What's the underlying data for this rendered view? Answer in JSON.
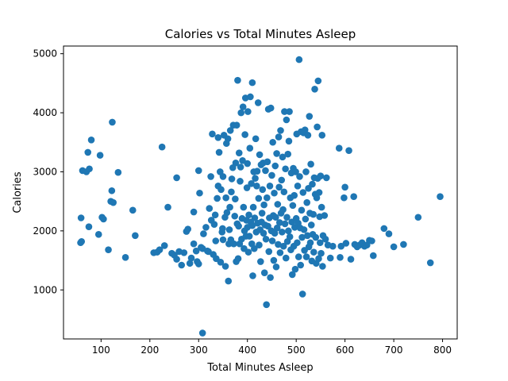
{
  "chart_data": {
    "type": "scatter",
    "title": "Calories vs Total Minutes Asleep",
    "xlabel": "Total Minutes Asleep",
    "ylabel": "Calories",
    "xlim": [
      23,
      830
    ],
    "ylim": [
      170,
      5130
    ],
    "xticks": [
      100,
      200,
      300,
      400,
      500,
      600,
      700,
      800
    ],
    "yticks": [
      1000,
      2000,
      3000,
      4000,
      5000
    ],
    "grid": false,
    "legend": "none",
    "marker_color": "#1f77b4",
    "points": [
      [
        59,
        2220
      ],
      [
        58,
        1800
      ],
      [
        60,
        1820
      ],
      [
        62,
        3020
      ],
      [
        70,
        3000
      ],
      [
        73,
        3330
      ],
      [
        76,
        3050
      ],
      [
        80,
        3540
      ],
      [
        75,
        2070
      ],
      [
        95,
        1940
      ],
      [
        98,
        3280
      ],
      [
        102,
        2230
      ],
      [
        105,
        2200
      ],
      [
        115,
        1680
      ],
      [
        120,
        2500
      ],
      [
        122,
        2680
      ],
      [
        125,
        2480
      ],
      [
        123,
        3840
      ],
      [
        135,
        2990
      ],
      [
        150,
        1550
      ],
      [
        165,
        2350
      ],
      [
        170,
        1920
      ],
      [
        208,
        1630
      ],
      [
        215,
        1640
      ],
      [
        220,
        1680
      ],
      [
        225,
        3420
      ],
      [
        230,
        1750
      ],
      [
        237,
        2400
      ],
      [
        245,
        1620
      ],
      [
        250,
        1590
      ],
      [
        255,
        1520
      ],
      [
        255,
        2900
      ],
      [
        260,
        1650
      ],
      [
        265,
        1420
      ],
      [
        270,
        1630
      ],
      [
        275,
        1990
      ],
      [
        278,
        2030
      ],
      [
        282,
        1450
      ],
      [
        285,
        1540
      ],
      [
        290,
        1780
      ],
      [
        290,
        2320
      ],
      [
        295,
        1660
      ],
      [
        297,
        1480
      ],
      [
        300,
        1440
      ],
      [
        300,
        3020
      ],
      [
        302,
        2640
      ],
      [
        305,
        1720
      ],
      [
        308,
        1700
      ],
      [
        310,
        1950
      ],
      [
        308,
        270
      ],
      [
        315,
        2060
      ],
      [
        318,
        1660
      ],
      [
        320,
        1650
      ],
      [
        322,
        2380
      ],
      [
        325,
        2920
      ],
      [
        326,
        2180
      ],
      [
        328,
        3640
      ],
      [
        330,
        1600
      ],
      [
        332,
        2110
      ],
      [
        334,
        2270
      ],
      [
        335,
        1830
      ],
      [
        336,
        1530
      ],
      [
        338,
        2550
      ],
      [
        340,
        2760
      ],
      [
        340,
        3580
      ],
      [
        342,
        3330
      ],
      [
        344,
        3000
      ],
      [
        345,
        1470
      ],
      [
        346,
        2700
      ],
      [
        348,
        1980
      ],
      [
        349,
        2040
      ],
      [
        350,
        1850
      ],
      [
        350,
        2920
      ],
      [
        352,
        3620
      ],
      [
        354,
        2230
      ],
      [
        355,
        1400
      ],
      [
        356,
        2560
      ],
      [
        357,
        3480
      ],
      [
        358,
        2310
      ],
      [
        360,
        3560
      ],
      [
        361,
        1150
      ],
      [
        362,
        1780
      ],
      [
        363,
        2020
      ],
      [
        364,
        2400
      ],
      [
        365,
        3700
      ],
      [
        366,
        1850
      ],
      [
        367,
        2660
      ],
      [
        368,
        2880
      ],
      [
        370,
        3070
      ],
      [
        371,
        3790
      ],
      [
        372,
        1780
      ],
      [
        374,
        2250
      ],
      [
        375,
        2540
      ],
      [
        376,
        3150
      ],
      [
        377,
        1480
      ],
      [
        378,
        3790
      ],
      [
        379,
        2120
      ],
      [
        380,
        4550
      ],
      [
        381,
        1530
      ],
      [
        382,
        2080
      ],
      [
        383,
        3320
      ],
      [
        384,
        1780
      ],
      [
        385,
        2840
      ],
      [
        386,
        3080
      ],
      [
        387,
        4000
      ],
      [
        388,
        1860
      ],
      [
        389,
        2210
      ],
      [
        390,
        3190
      ],
      [
        391,
        4100
      ],
      [
        392,
        2400
      ],
      [
        393,
        1700
      ],
      [
        394,
        2000
      ],
      [
        395,
        3630
      ],
      [
        396,
        4250
      ],
      [
        397,
        1910
      ],
      [
        398,
        2180
      ],
      [
        399,
        2730
      ],
      [
        400,
        2060
      ],
      [
        400,
        3140
      ],
      [
        401,
        4020
      ],
      [
        402,
        1640
      ],
      [
        403,
        2270
      ],
      [
        404,
        1910
      ],
      [
        405,
        3400
      ],
      [
        406,
        4270
      ],
      [
        407,
        2150
      ],
      [
        408,
        2800
      ],
      [
        409,
        1780
      ],
      [
        410,
        4510
      ],
      [
        410,
        2090
      ],
      [
        411,
        1240
      ],
      [
        412,
        2400
      ],
      [
        413,
        3000
      ],
      [
        414,
        1700
      ],
      [
        415,
        2220
      ],
      [
        416,
        2890
      ],
      [
        417,
        3560
      ],
      [
        418,
        1980
      ],
      [
        419,
        2760
      ],
      [
        420,
        3010
      ],
      [
        421,
        2130
      ],
      [
        422,
        4170
      ],
      [
        423,
        2550
      ],
      [
        424,
        1760
      ],
      [
        425,
        3290
      ],
      [
        426,
        2020
      ],
      [
        427,
        1480
      ],
      [
        428,
        3120
      ],
      [
        429,
        2150
      ],
      [
        430,
        2300
      ],
      [
        431,
        2700
      ],
      [
        432,
        3150
      ],
      [
        433,
        1960
      ],
      [
        434,
        2440
      ],
      [
        435,
        1290
      ],
      [
        436,
        2100
      ],
      [
        437,
        3020
      ],
      [
        438,
        1860
      ],
      [
        439,
        750
      ],
      [
        440,
        2560
      ],
      [
        441,
        3170
      ],
      [
        442,
        2080
      ],
      [
        443,
        4060
      ],
      [
        444,
        1650
      ],
      [
        445,
        2220
      ],
      [
        446,
        2760
      ],
      [
        447,
        1210
      ],
      [
        448,
        4080
      ],
      [
        449,
        2000
      ],
      [
        450,
        2940
      ],
      [
        451,
        1830
      ],
      [
        452,
        3500
      ],
      [
        453,
        2260
      ],
      [
        454,
        1500
      ],
      [
        455,
        2640
      ],
      [
        456,
        1960
      ],
      [
        457,
        3100
      ],
      [
        458,
        2230
      ],
      [
        459,
        1390
      ],
      [
        460,
        3310
      ],
      [
        461,
        2050
      ],
      [
        462,
        2450
      ],
      [
        463,
        1770
      ],
      [
        464,
        3590
      ],
      [
        465,
        2740
      ],
      [
        466,
        2140
      ],
      [
        467,
        1630
      ],
      [
        468,
        3700
      ],
      [
        469,
        2300
      ],
      [
        470,
        2860
      ],
      [
        471,
        1980
      ],
      [
        472,
        3250
      ],
      [
        473,
        2360
      ],
      [
        474,
        1740
      ],
      [
        475,
        2660
      ],
      [
        476,
        4020
      ],
      [
        477,
        2120
      ],
      [
        478,
        3050
      ],
      [
        479,
        1540
      ],
      [
        480,
        3880
      ],
      [
        481,
        2230
      ],
      [
        482,
        1820
      ],
      [
        483,
        3300
      ],
      [
        484,
        2000
      ],
      [
        485,
        3520
      ],
      [
        486,
        4020
      ],
      [
        487,
        1900
      ],
      [
        488,
        2560
      ],
      [
        489,
        1680
      ],
      [
        490,
        2980
      ],
      [
        491,
        2150
      ],
      [
        492,
        1260
      ],
      [
        493,
        2430
      ],
      [
        494,
        3060
      ],
      [
        495,
        1740
      ],
      [
        496,
        2600
      ],
      [
        497,
        2060
      ],
      [
        498,
        1350
      ],
      [
        499,
        3000
      ],
      [
        500,
        2210
      ],
      [
        501,
        3640
      ],
      [
        502,
        1800
      ],
      [
        503,
        2760
      ],
      [
        504,
        2130
      ],
      [
        505,
        1560
      ],
      [
        506,
        4900
      ],
      [
        507,
        2920
      ],
      [
        508,
        2050
      ],
      [
        509,
        1420
      ],
      [
        510,
        3680
      ],
      [
        511,
        2350
      ],
      [
        512,
        1890
      ],
      [
        513,
        930
      ],
      [
        514,
        2650
      ],
      [
        515,
        3660
      ],
      [
        516,
        2020
      ],
      [
        517,
        1670
      ],
      [
        518,
        3710
      ],
      [
        519,
        2200
      ],
      [
        520,
        3000
      ],
      [
        521,
        1560
      ],
      [
        522,
        2480
      ],
      [
        523,
        1920
      ],
      [
        524,
        3620
      ],
      [
        525,
        2720
      ],
      [
        526,
        1730
      ],
      [
        527,
        3940
      ],
      [
        528,
        2300
      ],
      [
        529,
        1800
      ],
      [
        530,
        3130
      ],
      [
        531,
        2100
      ],
      [
        532,
        1490
      ],
      [
        533,
        2790
      ],
      [
        534,
        1940
      ],
      [
        535,
        2280
      ],
      [
        536,
        1640
      ],
      [
        537,
        2900
      ],
      [
        538,
        4400
      ],
      [
        539,
        2620
      ],
      [
        540,
        1890
      ],
      [
        541,
        1450
      ],
      [
        542,
        2560
      ],
      [
        543,
        3760
      ],
      [
        544,
        2890
      ],
      [
        545,
        4540
      ],
      [
        546,
        1530
      ],
      [
        547,
        2650
      ],
      [
        548,
        2240
      ],
      [
        549,
        1800
      ],
      [
        550,
        2930
      ],
      [
        551,
        1620
      ],
      [
        552,
        2400
      ],
      [
        553,
        3620
      ],
      [
        554,
        1400
      ],
      [
        555,
        1920
      ],
      [
        558,
        2260
      ],
      [
        560,
        1860
      ],
      [
        562,
        2900
      ],
      [
        565,
        1760
      ],
      [
        570,
        1540
      ],
      [
        575,
        1740
      ],
      [
        588,
        3400
      ],
      [
        590,
        1550
      ],
      [
        592,
        1740
      ],
      [
        598,
        2560
      ],
      [
        600,
        2740
      ],
      [
        602,
        1790
      ],
      [
        608,
        3360
      ],
      [
        612,
        1520
      ],
      [
        618,
        2580
      ],
      [
        620,
        1770
      ],
      [
        625,
        1730
      ],
      [
        630,
        1760
      ],
      [
        635,
        1800
      ],
      [
        640,
        1740
      ],
      [
        645,
        1760
      ],
      [
        650,
        1840
      ],
      [
        655,
        1830
      ],
      [
        658,
        1580
      ],
      [
        680,
        2040
      ],
      [
        690,
        1950
      ],
      [
        700,
        1730
      ],
      [
        720,
        1770
      ],
      [
        750,
        2230
      ],
      [
        775,
        1460
      ],
      [
        795,
        2580
      ]
    ]
  }
}
